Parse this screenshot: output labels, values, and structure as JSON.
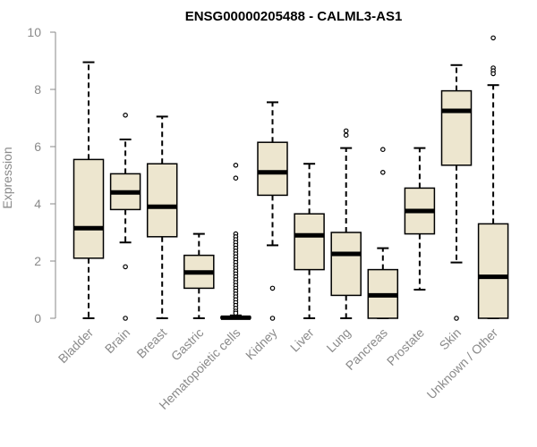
{
  "chart_data": {
    "type": "boxplot",
    "title": "ENSG00000205488 - CALML3-AS1",
    "xlabel": "",
    "ylabel": "Expression",
    "ylim": [
      0,
      10
    ],
    "yticks": [
      0,
      2,
      4,
      6,
      8,
      10
    ],
    "grid": false,
    "box_fill": "#ede6cf",
    "box_stroke": "#000000",
    "tick_color": "#8a8a8a",
    "categories": [
      "Bladder",
      "Brain",
      "Breast",
      "Gastric",
      "Hematopoietic cells",
      "Kidney",
      "Liver",
      "Lung",
      "Pancreas",
      "Prostate",
      "Skin",
      "Unknown / Other"
    ],
    "boxes": [
      {
        "name": "Bladder",
        "min": 0,
        "q1": 2.1,
        "median": 3.15,
        "q3": 5.55,
        "max": 8.95,
        "outliers": []
      },
      {
        "name": "Brain",
        "min": 2.65,
        "q1": 3.8,
        "median": 4.4,
        "q3": 5.05,
        "max": 6.25,
        "outliers": [
          7.1,
          1.8,
          0
        ]
      },
      {
        "name": "Breast",
        "min": 0,
        "q1": 2.85,
        "median": 3.9,
        "q3": 5.4,
        "max": 7.05,
        "outliers": []
      },
      {
        "name": "Gastric",
        "min": 0,
        "q1": 1.05,
        "median": 1.6,
        "q3": 2.2,
        "max": 2.95,
        "outliers": []
      },
      {
        "name": "Hematopoietic cells",
        "min": 0,
        "q1": 0,
        "median": 0.02,
        "q3": 0.05,
        "max": 0.1,
        "outliers": [
          5.35,
          4.9,
          2.95,
          2.85,
          2.75,
          2.65,
          2.55,
          2.45,
          2.35,
          2.25,
          2.15,
          2.05,
          1.95,
          1.85,
          1.75,
          1.65,
          1.55,
          1.45,
          1.35,
          1.25,
          1.15,
          1.05,
          0.95,
          0.85,
          0.75,
          0.65,
          0.55,
          0.45,
          0.35,
          0.25,
          0.18
        ]
      },
      {
        "name": "Kidney",
        "min": 2.55,
        "q1": 4.3,
        "median": 5.1,
        "q3": 6.15,
        "max": 7.55,
        "outliers": [
          1.05,
          0
        ]
      },
      {
        "name": "Liver",
        "min": 0,
        "q1": 1.7,
        "median": 2.9,
        "q3": 3.65,
        "max": 5.4,
        "outliers": []
      },
      {
        "name": "Lung",
        "min": 0,
        "q1": 0.8,
        "median": 2.25,
        "q3": 3.0,
        "max": 5.95,
        "outliers": [
          6.55,
          6.4
        ]
      },
      {
        "name": "Pancreas",
        "min": 0,
        "q1": 0,
        "median": 0.8,
        "q3": 1.7,
        "max": 2.45,
        "outliers": [
          5.9,
          5.1
        ]
      },
      {
        "name": "Prostate",
        "min": 1.0,
        "q1": 2.95,
        "median": 3.75,
        "q3": 4.55,
        "max": 5.95,
        "outliers": []
      },
      {
        "name": "Skin",
        "min": 1.95,
        "q1": 5.35,
        "median": 7.25,
        "q3": 7.95,
        "max": 8.85,
        "outliers": [
          0
        ]
      },
      {
        "name": "Unknown / Other",
        "min": 0,
        "q1": 0,
        "median": 1.45,
        "q3": 3.3,
        "max": 8.15,
        "outliers": [
          9.8,
          8.75,
          8.65,
          8.55
        ]
      }
    ]
  }
}
